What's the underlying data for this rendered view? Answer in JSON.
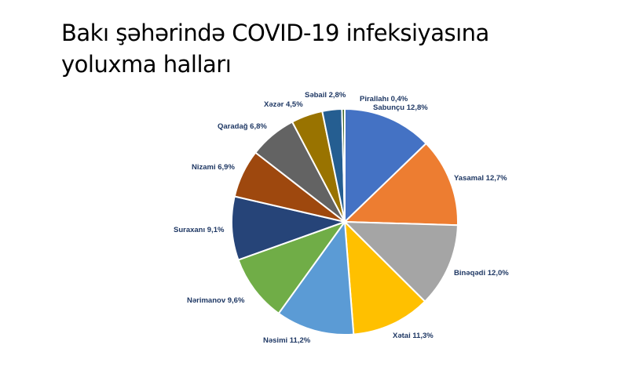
{
  "title": {
    "line1": "Bakı şəhərində COVID-19 infeksiyasına",
    "line2": "yoluxma halları"
  },
  "chart_data": {
    "type": "pie",
    "slices": [
      {
        "name": "Sabunçu",
        "value": 12.8,
        "label": "Sabunçu 12,8%",
        "color": "#4472c4"
      },
      {
        "name": "Yasamal",
        "value": 12.7,
        "label": "Yasamal 12,7%",
        "color": "#ed7d31"
      },
      {
        "name": "Binəqədi",
        "value": 12.0,
        "label": "Binəqədi 12,0%",
        "color": "#a5a5a5"
      },
      {
        "name": "Xətai",
        "value": 11.3,
        "label": "Xətai 11,3%",
        "color": "#ffc000"
      },
      {
        "name": "Nəsimi",
        "value": 11.2,
        "label": "Nəsimi 11,2%",
        "color": "#5b9bd5"
      },
      {
        "name": "Nərimanov",
        "value": 9.6,
        "label": "Nərimanov 9,6%",
        "color": "#70ad47"
      },
      {
        "name": "Suraxanı",
        "value": 9.1,
        "label": "Suraxanı 9,1%",
        "color": "#264478"
      },
      {
        "name": "Nizami",
        "value": 6.9,
        "label": "Nizami 6,9%",
        "color": "#9e480e"
      },
      {
        "name": "Qaradağ",
        "value": 6.8,
        "label": "Qaradağ 6,8%",
        "color": "#636363"
      },
      {
        "name": "Xəzər",
        "value": 4.5,
        "label": "Xəzər 4,5%",
        "color": "#997300"
      },
      {
        "name": "Səbail",
        "value": 2.8,
        "label": "Səbail 2,8%",
        "color": "#255e91"
      },
      {
        "name": "Pirallahı",
        "value": 0.4,
        "label": "Pirallahı 0,4%",
        "color": "#43682b"
      }
    ],
    "start_angle": "12 o'clock, clockwise",
    "label_color": "#1f3864"
  }
}
